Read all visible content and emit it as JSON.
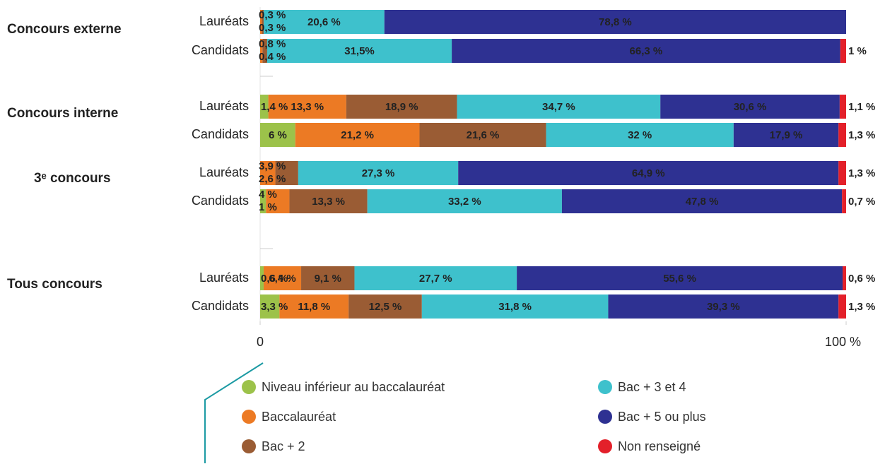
{
  "chart_data": {
    "type": "bar",
    "orientation": "horizontal",
    "stacked": true,
    "groups": [
      "Concours externe",
      "Concours interne",
      "3ᵉ concours",
      "Tous concours"
    ],
    "categories": [
      "Lauréats",
      "Candidats",
      "Lauréats",
      "Candidats",
      "Lauréats",
      "Candidats",
      "Lauréats",
      "Candidats"
    ],
    "series": [
      {
        "name": "Niveau inférieur au baccalauréat",
        "color": "#9cc24a",
        "values": [
          null,
          null,
          1.4,
          6,
          null,
          1,
          0.6,
          3.3
        ],
        "value_labels": [
          null,
          null,
          "1,4 %",
          "6 %",
          null,
          "1 %",
          "0,6 %",
          "3,3 %"
        ]
      },
      {
        "name": "Baccalauréat",
        "color": "#ec7a24",
        "values": [
          0.3,
          0.4,
          13.3,
          21.2,
          2.6,
          4,
          6.4,
          11.8
        ],
        "value_labels": [
          "0,3 %",
          "0,4 %",
          "13,3 %",
          "21,2 %",
          "2,6 %",
          "4 %",
          "6,4 %",
          "11,8 %"
        ]
      },
      {
        "name": "Bac + 2",
        "color": "#9a5c34",
        "values": [
          0.3,
          0.8,
          18.9,
          21.6,
          3.9,
          13.3,
          9.1,
          12.5
        ],
        "value_labels": [
          "0,3 %",
          "0,8 %",
          "18,9 %",
          "21,6 %",
          "3,9 %",
          "13,3 %",
          "9,1 %",
          "12,5 %"
        ]
      },
      {
        "name": "Bac + 3 et 4",
        "color": "#3ec1cc",
        "values": [
          20.6,
          31.5,
          34.7,
          32,
          27.3,
          33.2,
          27.7,
          31.8
        ],
        "value_labels": [
          "20,6 %",
          "31,5%",
          "34,7 %",
          "32 %",
          "27,3 %",
          "33,2 %",
          "27,7 %",
          "31,8 %"
        ]
      },
      {
        "name": "Bac + 5 ou plus",
        "color": "#2e3192",
        "values": [
          78.8,
          66.3,
          30.6,
          17.9,
          64.9,
          47.8,
          55.6,
          39.3
        ],
        "value_labels": [
          "78,8 %",
          "66,3 %",
          "30,6 %",
          "17,9 %",
          "64,9 %",
          "47,8 %",
          "55,6 %",
          "39,3 %"
        ]
      },
      {
        "name": "Non renseigné",
        "color": "#e3202a",
        "values": [
          null,
          1,
          1.1,
          1.3,
          1.3,
          0.7,
          0.6,
          1.3
        ],
        "value_labels": [
          null,
          "1 %",
          "1,1 %",
          "1,3 %",
          "1,3 %",
          "0,7 %",
          "0,6 %",
          "1,3 %"
        ]
      }
    ],
    "xlim": [
      0,
      100
    ],
    "xticks": [
      0,
      {
        "value": 100,
        "label": "100 %"
      }
    ]
  }
}
